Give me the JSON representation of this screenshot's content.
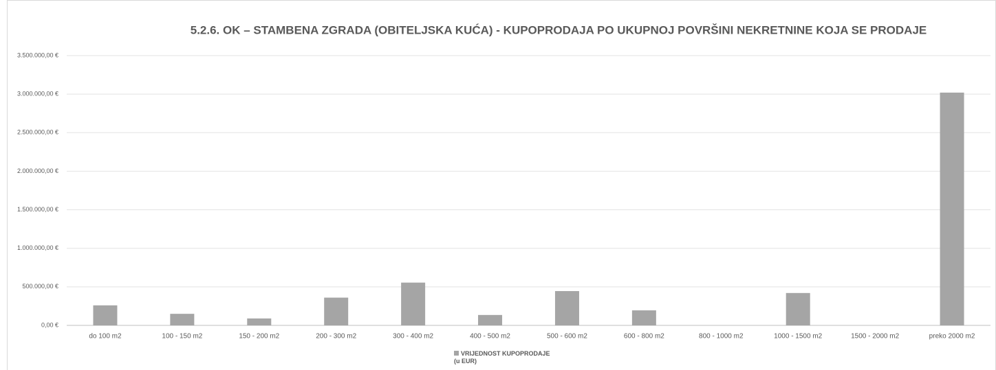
{
  "chart_data": {
    "type": "bar",
    "title": "5.2.6. OK – STAMBENA ZGRADA (OBITELJSKA KUĆA) - KUPOPRODAJA PO UKUPNOJ POVRŠINI NEKRETNINE KOJA SE PRODAJE",
    "categories": [
      "do 100 m2",
      "100 - 150 m2",
      "150 - 200 m2",
      "200 - 300 m2",
      "300 - 400 m2",
      "400 - 500 m2",
      "500 - 600 m2",
      "600 - 800 m2",
      "800 - 1000 m2",
      "1000 - 1500 m2",
      "1500 - 2000 m2",
      "preko 2000 m2"
    ],
    "series": [
      {
        "name": "VRIJEDNOST KUPOPRODAJE\n(u EUR)",
        "color": "#a5a5a5",
        "values": [
          260000,
          150000,
          90000,
          360000,
          555000,
          135000,
          445000,
          195000,
          0,
          420000,
          0,
          3020000
        ]
      }
    ],
    "ylim": [
      0,
      3500000
    ],
    "yticks": [
      {
        "value": 0,
        "label": "0,00 €"
      },
      {
        "value": 500000,
        "label": "500.000,00 €"
      },
      {
        "value": 1000000,
        "label": "1.000.000,00 €"
      },
      {
        "value": 1500000,
        "label": "1.500.000,00 €"
      },
      {
        "value": 2000000,
        "label": "2.000.000,00 €"
      },
      {
        "value": 2500000,
        "label": "2.500.000,00 €"
      },
      {
        "value": 3000000,
        "label": "3.000.000,00 €"
      },
      {
        "value": 3500000,
        "label": "3.500.000,00 €"
      }
    ],
    "grid": true,
    "legend": "bottom"
  }
}
